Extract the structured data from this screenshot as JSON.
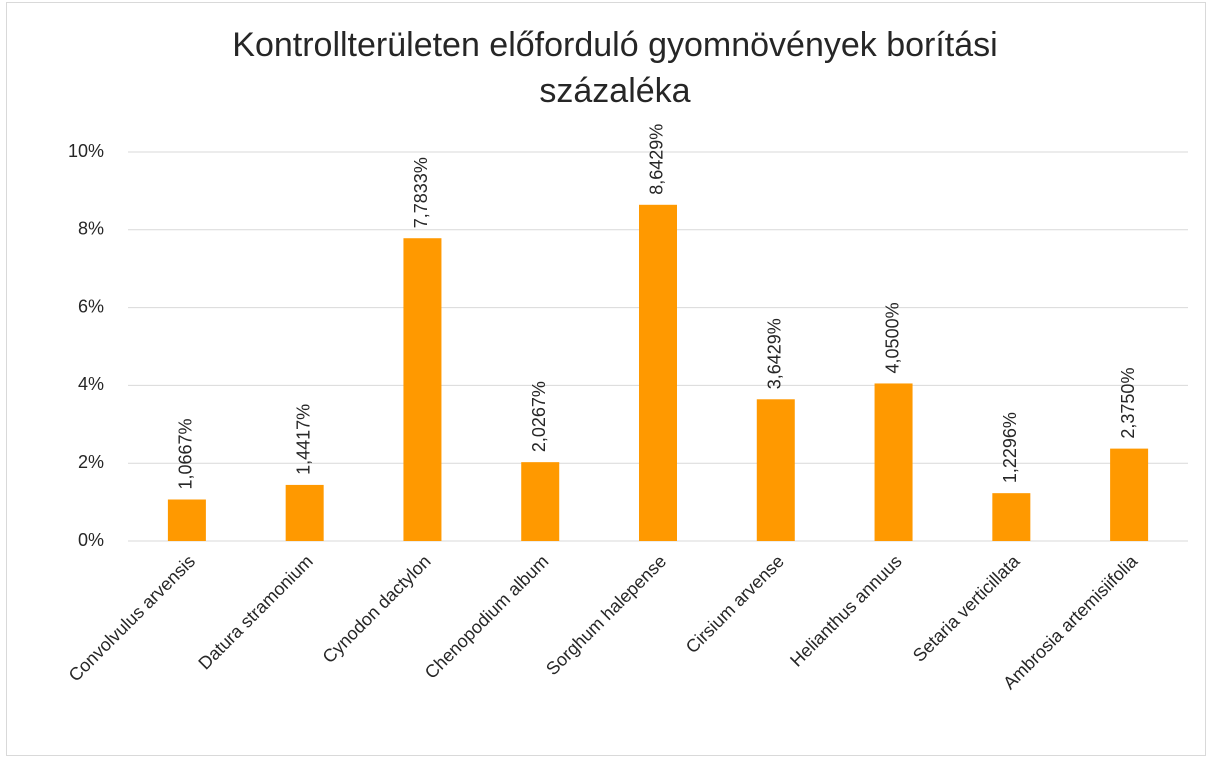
{
  "chart_data": {
    "type": "bar",
    "title": "Kontrollterületen előforduló gyomnövények borítási százaléka",
    "categories": [
      "Convolvulus arvensis",
      "Datura stramonium",
      "Cynodon dactylon",
      "Chenopodium album",
      "Sorghum halepense",
      "Cirsium arvense",
      "Helianthus annuus",
      "Setaria verticillata",
      "Ambrosia artemisiifolia"
    ],
    "values": [
      1.0667,
      1.4417,
      7.7833,
      2.0267,
      8.6429,
      3.6429,
      4.05,
      1.2296,
      2.375
    ],
    "value_labels": [
      "1,0667%",
      "1,4417%",
      "7,7833%",
      "2,0267%",
      "8,6429%",
      "3,6429%",
      "4,0500%",
      "1,2296%",
      "2,3750%"
    ],
    "color": "#ff9900",
    "ylim": [
      0,
      10
    ],
    "yticks": [
      {
        "value": 0,
        "label": "0%"
      },
      {
        "value": 2,
        "label": "2%"
      },
      {
        "value": 4,
        "label": "4%"
      },
      {
        "value": 6,
        "label": "6%"
      },
      {
        "value": 8,
        "label": "8%"
      },
      {
        "value": 10,
        "label": "10%"
      }
    ],
    "grid": true
  }
}
